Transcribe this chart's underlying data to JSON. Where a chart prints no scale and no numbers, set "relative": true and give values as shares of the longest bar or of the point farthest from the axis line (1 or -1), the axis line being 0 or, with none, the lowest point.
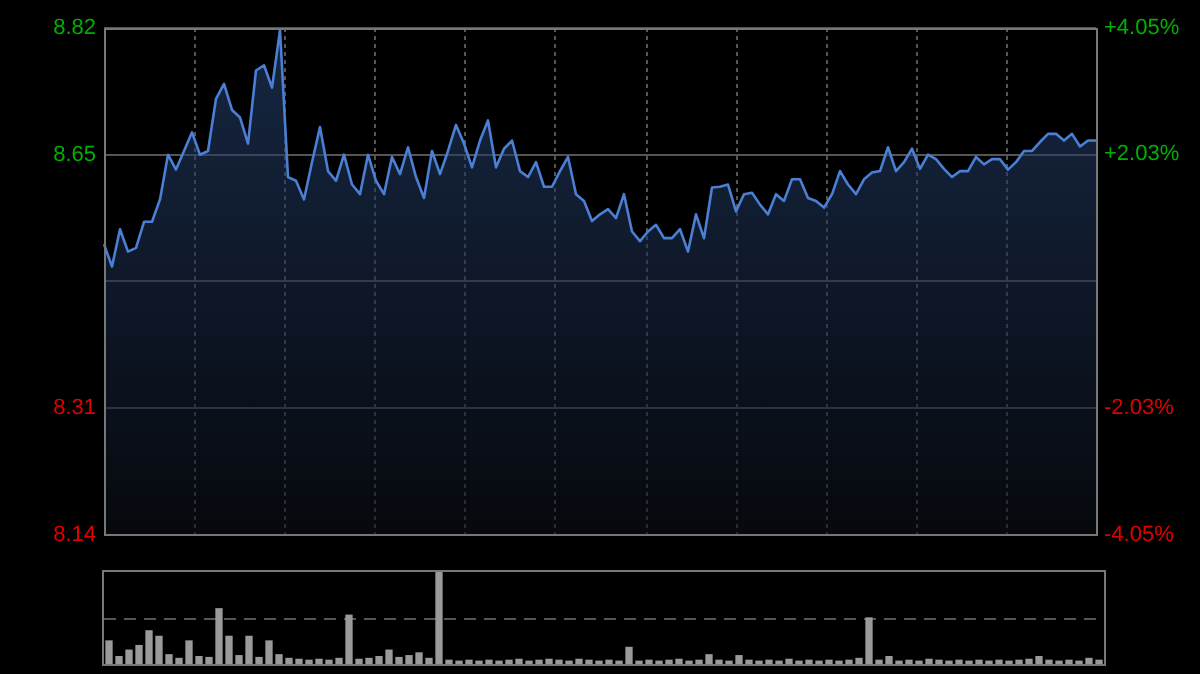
{
  "chart_data": [
    {
      "type": "area",
      "color": "#4a7fd4",
      "categories": [
        null,
        null,
        null,
        null,
        null,
        null,
        null,
        null,
        null,
        null,
        null,
        null,
        null,
        null,
        null,
        null,
        null,
        null,
        null,
        null,
        null,
        null,
        null,
        null,
        null,
        null,
        null,
        null,
        null,
        null,
        null,
        null,
        null,
        null,
        null,
        null,
        null,
        null,
        null,
        null,
        null,
        null,
        null,
        null,
        null,
        null,
        null,
        null,
        null,
        null,
        null,
        null,
        null,
        null,
        null,
        null,
        null,
        null,
        null,
        null,
        null,
        null,
        null,
        null,
        null,
        null,
        null,
        null,
        null,
        null,
        null,
        null,
        null,
        null,
        null,
        null,
        null,
        null,
        null,
        null,
        null,
        null,
        null,
        null,
        null,
        null,
        null,
        null,
        null,
        null,
        null,
        null,
        null,
        null,
        null,
        null,
        null,
        null,
        null,
        null,
        null,
        null,
        null,
        null,
        null,
        null,
        null,
        null,
        null,
        null,
        null,
        null,
        null,
        null,
        null,
        null,
        null,
        null,
        null,
        null,
        null,
        null,
        null,
        null,
        null
      ],
      "values": [
        8.53,
        8.5,
        8.55,
        8.52,
        8.525,
        8.56,
        8.56,
        8.59,
        8.65,
        8.63,
        8.655,
        8.68,
        8.65,
        8.655,
        8.725,
        8.745,
        8.71,
        8.7,
        8.665,
        8.763,
        8.77,
        8.74,
        8.817,
        8.62,
        8.615,
        8.59,
        8.64,
        8.687,
        8.628,
        8.615,
        8.65,
        8.61,
        8.597,
        8.65,
        8.615,
        8.597,
        8.647,
        8.624,
        8.66,
        8.62,
        8.592,
        8.655,
        8.624,
        8.655,
        8.69,
        8.665,
        8.633,
        8.669,
        8.696,
        8.633,
        8.658,
        8.669,
        8.628,
        8.62,
        8.64,
        8.607,
        8.607,
        8.628,
        8.647,
        8.597,
        8.588,
        8.561,
        8.57,
        8.577,
        8.565,
        8.597,
        8.547,
        8.534,
        8.547,
        8.556,
        8.538,
        8.538,
        8.55,
        8.52,
        8.57,
        8.538,
        8.606,
        8.607,
        8.61,
        8.574,
        8.597,
        8.599,
        8.583,
        8.57,
        8.597,
        8.588,
        8.617,
        8.617,
        8.592,
        8.588,
        8.579,
        8.597,
        8.628,
        8.61,
        8.597,
        8.617,
        8.626,
        8.628,
        8.66,
        8.628,
        8.64,
        8.658,
        8.631,
        8.65,
        8.644,
        8.631,
        8.62,
        8.628,
        8.628,
        8.647,
        8.637,
        8.644,
        8.644,
        8.63,
        8.64,
        8.655,
        8.655,
        8.667,
        8.678,
        8.678,
        8.669,
        8.678,
        8.661,
        8.669,
        8.669
      ],
      "ylim": [
        8.14,
        8.82
      ],
      "yticks": [
        8.14,
        8.31,
        {
          "value": 8.48,
          "label": null
        },
        8.65,
        8.82
      ],
      "y2lim": [
        -4.05,
        4.05
      ],
      "y2ticks": [
        {
          "value": -4.05,
          "label": "-4.05%"
        },
        {
          "value": -2.03,
          "label": "-2.03%"
        },
        {
          "value": 0,
          "label": null
        },
        {
          "value": 2.03,
          "label": "+2.03%"
        },
        {
          "value": 4.05,
          "label": "+4.05%"
        }
      ],
      "tick_labels": "y",
      "grid": true,
      "legend": false,
      "marker": "none",
      "line_style": "solid"
    },
    {
      "type": "bar",
      "relative": true,
      "color": "#9a9a9a",
      "categories": [
        null,
        null,
        null,
        null,
        null,
        null,
        null,
        null,
        null,
        null,
        null,
        null,
        null,
        null,
        null,
        null,
        null,
        null,
        null,
        null,
        null,
        null,
        null,
        null,
        null,
        null,
        null,
        null,
        null,
        null,
        null,
        null,
        null,
        null,
        null,
        null,
        null,
        null,
        null,
        null,
        null,
        null,
        null,
        null,
        null,
        null,
        null,
        null,
        null,
        null,
        null,
        null,
        null,
        null,
        null,
        null,
        null,
        null,
        null,
        null,
        null,
        null,
        null,
        null,
        null,
        null,
        null,
        null,
        null,
        null,
        null,
        null,
        null,
        null,
        null,
        null,
        null,
        null,
        null,
        null,
        null,
        null,
        null,
        null,
        null,
        null,
        null,
        null,
        null,
        null,
        null,
        null,
        null,
        null,
        null,
        null,
        null,
        null,
        null,
        null
      ],
      "values": [
        0.25,
        0.08,
        0.15,
        0.2,
        0.36,
        0.3,
        0.1,
        0.06,
        0.25,
        0.08,
        0.07,
        0.6,
        0.3,
        0.09,
        0.3,
        0.07,
        0.25,
        0.1,
        0.06,
        0.05,
        0.04,
        0.05,
        0.04,
        0.06,
        0.53,
        0.05,
        0.06,
        0.08,
        0.15,
        0.07,
        0.09,
        0.12,
        0.06,
        1,
        0.04,
        0.03,
        0.04,
        0.03,
        0.04,
        0.03,
        0.04,
        0.05,
        0.03,
        0.04,
        0.05,
        0.04,
        0.03,
        0.05,
        0.04,
        0.03,
        0.04,
        0.03,
        0.18,
        0.03,
        0.04,
        0.03,
        0.04,
        0.05,
        0.03,
        0.04,
        0.1,
        0.04,
        0.03,
        0.09,
        0.04,
        0.03,
        0.04,
        0.03,
        0.05,
        0.03,
        0.04,
        0.03,
        0.04,
        0.03,
        0.04,
        0.06,
        0.5,
        0.04,
        0.08,
        0.03,
        0.04,
        0.03,
        0.05,
        0.04,
        0.03,
        0.04,
        0.03,
        0.04,
        0.03,
        0.04,
        0.03,
        0.04,
        0.05,
        0.08,
        0.04,
        0.03,
        0.04,
        0.03,
        0.06,
        0.04
      ],
      "tick_labels": false,
      "ref_lines": [
        {
          "axis": "y",
          "value": 0.5,
          "color": "#555555",
          "line_style": "dashed"
        }
      ],
      "legend": false
    }
  ]
}
